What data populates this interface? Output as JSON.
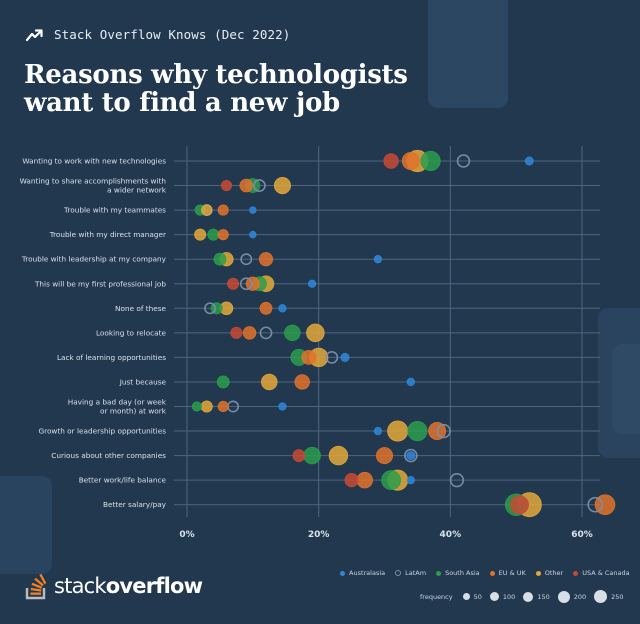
{
  "header": {
    "title": "Stack Overflow Knows (Dec 2022)",
    "icon": "trend-arrow-icon"
  },
  "title": {
    "line1": "Reasons why technologists",
    "line2": "want to find a new job"
  },
  "brand": {
    "logo_part1": "stack",
    "logo_part2": "overflow"
  },
  "colors": {
    "background": "#21384f",
    "Australasia": "#2f87d8",
    "LatAm": "#7b8fa8",
    "South Asia": "#2a9d4c",
    "EU & UK": "#e0722a",
    "Other": "#e3a83a",
    "USA & Canada": "#c84a35"
  },
  "legend": {
    "regions": [
      {
        "label": "Australasia",
        "color": "#2f87d8",
        "hollow": false
      },
      {
        "label": "LatAm",
        "color": "#7b8fa8",
        "hollow": true
      },
      {
        "label": "South Asia",
        "color": "#2a9d4c",
        "hollow": false
      },
      {
        "label": "EU & UK",
        "color": "#e0722a",
        "hollow": false
      },
      {
        "label": "Other",
        "color": "#e3a83a",
        "hollow": false
      },
      {
        "label": "USA & Canada",
        "color": "#c84a35",
        "hollow": false
      }
    ],
    "frequency_label": "frequency",
    "frequency_values": [
      "50",
      "100",
      "150",
      "200",
      "250"
    ]
  },
  "chart_data": {
    "type": "scatter",
    "subtype": "dot-plot",
    "title": "Reasons why technologists want to find a new job",
    "xlabel": "",
    "ylabel": "",
    "xlim": [
      0,
      65
    ],
    "x_ticks": [
      0,
      20,
      40,
      60
    ],
    "x_tick_labels": [
      "0%",
      "20%",
      "40%",
      "60%"
    ],
    "grid": true,
    "legend_position": "bottom-right",
    "size_encoding": "frequency",
    "categories": [
      [
        "Wanting to work with new technologies"
      ],
      [
        "Wanting to share accomplishments with",
        "a wider network"
      ],
      [
        "Trouble with my teammates"
      ],
      [
        "Trouble with my direct manager"
      ],
      [
        "Trouble with leadership at my company"
      ],
      [
        "This will be my first professional job"
      ],
      [
        "None of these"
      ],
      [
        "Looking to relocate"
      ],
      [
        "Lack of learning opportunities"
      ],
      [
        "Just because"
      ],
      [
        "Having a bad day (or week",
        "or month) at work"
      ],
      [
        "Growth or leadership opportunities"
      ],
      [
        "Curious about other companies"
      ],
      [
        "Better work/life balance"
      ],
      [
        "Better salary/pay"
      ]
    ],
    "series": [
      {
        "name": "Australasia",
        "values": [
          52,
          0,
          10,
          10,
          29,
          19,
          14.5,
          0,
          24,
          34,
          14.5,
          29,
          34,
          34,
          0
        ],
        "sizes": [
          20,
          0,
          10,
          10,
          15,
          15,
          15,
          0,
          20,
          15,
          15,
          15,
          20,
          15,
          0
        ]
      },
      {
        "name": "LatAm",
        "values": [
          42,
          11,
          3,
          0,
          9,
          9,
          3.5,
          12,
          22,
          0,
          7,
          39,
          34,
          41,
          62
        ],
        "sizes": [
          60,
          50,
          40,
          0,
          40,
          50,
          40,
          50,
          50,
          0,
          40,
          70,
          60,
          70,
          90
        ]
      },
      {
        "name": "South Asia",
        "values": [
          37,
          10,
          2,
          4,
          5,
          11,
          4.5,
          16,
          17,
          5.5,
          1.5,
          35,
          19,
          31,
          50
        ],
        "sizes": [
          200,
          90,
          40,
          50,
          60,
          90,
          50,
          120,
          130,
          60,
          30,
          200,
          140,
          190,
          260
        ]
      },
      {
        "name": "EU & UK",
        "values": [
          34,
          9,
          5.5,
          5.5,
          12,
          10,
          12,
          9.5,
          18.5,
          17.5,
          5.5,
          38,
          30,
          27,
          63.5
        ],
        "sizes": [
          150,
          70,
          40,
          40,
          80,
          80,
          60,
          70,
          90,
          100,
          40,
          150,
          130,
          120,
          210
        ]
      },
      {
        "name": "Other",
        "values": [
          35,
          14.5,
          3,
          2,
          6,
          12,
          6,
          19.5,
          20,
          12.5,
          3,
          32,
          23,
          32,
          52
        ],
        "sizes": [
          250,
          130,
          40,
          50,
          80,
          120,
          70,
          160,
          180,
          120,
          50,
          220,
          180,
          220,
          330
        ]
      },
      {
        "name": "USA & Canada",
        "values": [
          31,
          6,
          0,
          0,
          0,
          7,
          0,
          7.5,
          0,
          0,
          0,
          0,
          17,
          25,
          50.5
        ],
        "sizes": [
          100,
          40,
          0,
          0,
          0,
          50,
          0,
          50,
          0,
          0,
          0,
          0,
          60,
          80,
          170
        ]
      }
    ]
  }
}
